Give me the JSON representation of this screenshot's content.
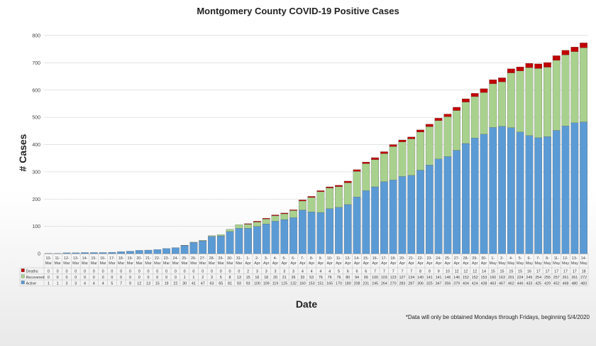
{
  "colors": {
    "deaths": "#c00000",
    "recovered": "#a9d18e",
    "active": "#5b9bd5",
    "grid": "#d9d9d9",
    "table_border": "#bfbfbf"
  },
  "chart_data": {
    "type": "bar",
    "stacked": true,
    "title": "Montgomery County COVID-19 Positive Cases",
    "xlabel": "Date",
    "ylabel": "# Cases",
    "ylim": [
      0,
      800
    ],
    "yticks": [
      0,
      100,
      200,
      300,
      400,
      500,
      600,
      700,
      800
    ],
    "grid": true,
    "legend": "data-table-left",
    "categories": [
      [
        "10-",
        "Mar"
      ],
      [
        "11-",
        "Mar"
      ],
      [
        "12-",
        "Mar"
      ],
      [
        "13-",
        "Mar"
      ],
      [
        "14-",
        "Mar"
      ],
      [
        "15-",
        "Mar"
      ],
      [
        "16-",
        "Mar"
      ],
      [
        "17-",
        "Mar"
      ],
      [
        "18-",
        "Mar"
      ],
      [
        "19-",
        "Mar"
      ],
      [
        "20-",
        "Mar"
      ],
      [
        "21-",
        "Mar"
      ],
      [
        "22-",
        "Mar"
      ],
      [
        "23-",
        "Mar"
      ],
      [
        "24-",
        "Mar"
      ],
      [
        "25-",
        "Mar"
      ],
      [
        "26-",
        "Mar"
      ],
      [
        "27-",
        "Mar"
      ],
      [
        "28-",
        "Mar"
      ],
      [
        "29-",
        "Mar"
      ],
      [
        "30-",
        "Mar"
      ],
      [
        "31-",
        "Mar"
      ],
      [
        "1-",
        "Apr"
      ],
      [
        "2-",
        "Apr"
      ],
      [
        "3-",
        "Apr"
      ],
      [
        "4-",
        "Apr"
      ],
      [
        "5-",
        "Apr"
      ],
      [
        "6-",
        "Apr"
      ],
      [
        "7-",
        "Apr"
      ],
      [
        "8-",
        "Apr"
      ],
      [
        "9-",
        "Apr"
      ],
      [
        "10-",
        "Apr"
      ],
      [
        "11-",
        "Apr"
      ],
      [
        "13-",
        "Apr"
      ],
      [
        "14-",
        "Apr"
      ],
      [
        "15-",
        "Apr"
      ],
      [
        "16-",
        "Apr"
      ],
      [
        "17-",
        "Apr"
      ],
      [
        "18-",
        "Apr"
      ],
      [
        "20-",
        "Apr"
      ],
      [
        "21-",
        "Apr"
      ],
      [
        "22-",
        "Apr"
      ],
      [
        "23-",
        "Apr"
      ],
      [
        "24-",
        "Apr"
      ],
      [
        "25-",
        "Apr"
      ],
      [
        "27-",
        "Apr"
      ],
      [
        "28-",
        "Apr"
      ],
      [
        "29-",
        "Apr"
      ],
      [
        "30-",
        "Apr"
      ],
      [
        "1-",
        "May"
      ],
      [
        "2-",
        "May"
      ],
      [
        "4-",
        "May"
      ],
      [
        "5-",
        "May"
      ],
      [
        "6-",
        "May"
      ],
      [
        "7-",
        "May"
      ],
      [
        "8-",
        "May"
      ],
      [
        "11-",
        "May"
      ],
      [
        "12-",
        "May"
      ],
      [
        "13-",
        "May"
      ],
      [
        "14-",
        "May"
      ]
    ],
    "series": [
      {
        "name": "Deaths",
        "color_key": "deaths",
        "values": [
          0,
          0,
          0,
          0,
          0,
          0,
          0,
          0,
          0,
          0,
          0,
          0,
          0,
          0,
          0,
          0,
          0,
          0,
          0,
          0,
          0,
          0,
          2,
          3,
          3,
          3,
          3,
          3,
          4,
          4,
          4,
          4,
          5,
          6,
          6,
          6,
          7,
          7,
          7,
          7,
          7,
          8,
          9,
          9,
          10,
          12,
          12,
          12,
          14,
          15,
          15,
          15,
          15,
          16,
          17,
          17,
          17,
          17,
          17,
          18
        ]
      },
      {
        "name": "Recovered",
        "color_key": "recovered",
        "values": [
          0,
          0,
          0,
          0,
          0,
          0,
          0,
          0,
          0,
          0,
          0,
          0,
          0,
          0,
          0,
          1,
          1,
          2,
          3,
          5,
          8,
          13,
          15,
          16,
          18,
          20,
          21,
          26,
          33,
          53,
          76,
          76,
          76,
          80,
          94,
          99,
          100,
          103,
          123,
          127,
          134,
          140,
          141,
          141,
          146,
          146,
          152,
          152,
          153,
          160,
          163,
          201,
          224,
          249,
          254,
          255,
          257,
          261,
          261,
          272
        ]
      },
      {
        "name": "Active",
        "color_key": "active",
        "values": [
          1,
          1,
          3,
          3,
          4,
          4,
          4,
          5,
          7,
          9,
          12,
          13,
          15,
          19,
          22,
          30,
          41,
          47,
          63,
          65,
          81,
          93,
          93,
          100,
          109,
          119,
          125,
          132,
          160,
          153,
          151,
          165,
          170,
          180,
          208,
          231,
          245,
          264,
          270,
          283,
          287,
          306,
          325,
          347,
          356,
          379,
          404,
          424,
          438,
          463,
          467,
          462,
          446,
          433,
          425,
          429,
          452,
          468,
          480,
          483
        ]
      }
    ]
  },
  "footnote": "*Data will only be obtained Mondays through Fridays, beginning 5/4/2020"
}
